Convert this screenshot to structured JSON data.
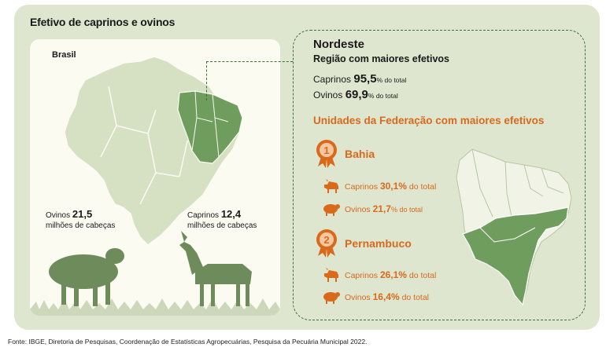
{
  "title": "Efetivo de caprinos e ovinos",
  "brasil": {
    "label": "Brasil",
    "ovinos": {
      "label": "Ovinos",
      "value": "21,5",
      "unit": "milhões de cabeças"
    },
    "caprinos": {
      "label": "Caprinos",
      "value": "12,4",
      "unit": "milhões de cabeças"
    }
  },
  "nordeste": {
    "title": "Nordeste",
    "subtitle": "Região com maiores efetivos",
    "caprinos": {
      "label": "Caprinos",
      "value": "95,5",
      "unit": "% do total"
    },
    "ovinos": {
      "label": "Ovinos",
      "value": "69,9",
      "unit": "% do total"
    }
  },
  "uf": {
    "heading": "Unidades da Federação com maiores efetivos",
    "states": [
      {
        "rank": "1",
        "name": "Bahia",
        "caprinos": {
          "label": "Caprinos",
          "value": "30,1%",
          "unit": "do total"
        },
        "ovinos": {
          "label": "Ovinos",
          "value": "21,7",
          "unit": "% do total"
        }
      },
      {
        "rank": "2",
        "name": "Pernambuco",
        "caprinos": {
          "label": "Caprinos",
          "value": "26,1%",
          "unit": "do total"
        },
        "ovinos": {
          "label": "Ovinos",
          "value": "16,4%",
          "unit": "do total"
        }
      }
    ]
  },
  "colors": {
    "background": "#dfe6cf",
    "map_light": "#d6e1c4",
    "map_highlight": "#6f9d5e",
    "accent_orange": "#d9691b",
    "animal_green": "#6d8b5b"
  },
  "footer": "Fonte: IBGE, Diretoria de Pesquisas, Coordenação de Estatísticas Agropecuárias, Pesquisa da Pecuária Municipal 2022."
}
